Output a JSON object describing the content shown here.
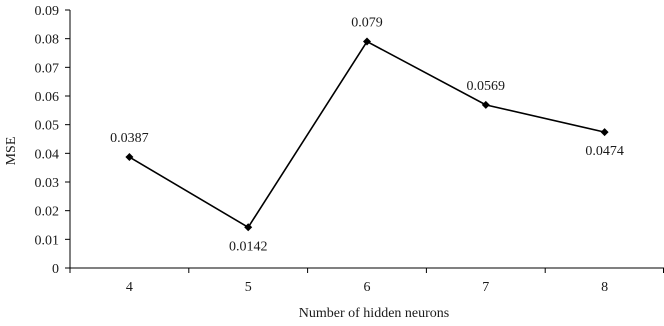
{
  "chart_data": {
    "type": "line",
    "title": "",
    "xlabel": "Number of hidden neurons",
    "ylabel": "MSE",
    "categories": [
      "4",
      "5",
      "6",
      "7",
      "8"
    ],
    "series": [
      {
        "values": [
          0.0387,
          0.0142,
          0.079,
          0.0569,
          0.0474
        ],
        "data_labels": [
          "0.0387",
          "0.0142",
          "0.079",
          "0.0569",
          "0.0474"
        ],
        "marker": "diamond",
        "color": "#000000"
      }
    ],
    "ylim": [
      0,
      0.09
    ],
    "yticks": [
      "0",
      "0.01",
      "0.02",
      "0.03",
      "0.04",
      "0.05",
      "0.06",
      "0.07",
      "0.08",
      "0.09"
    ],
    "grid": false,
    "legend": "none"
  }
}
